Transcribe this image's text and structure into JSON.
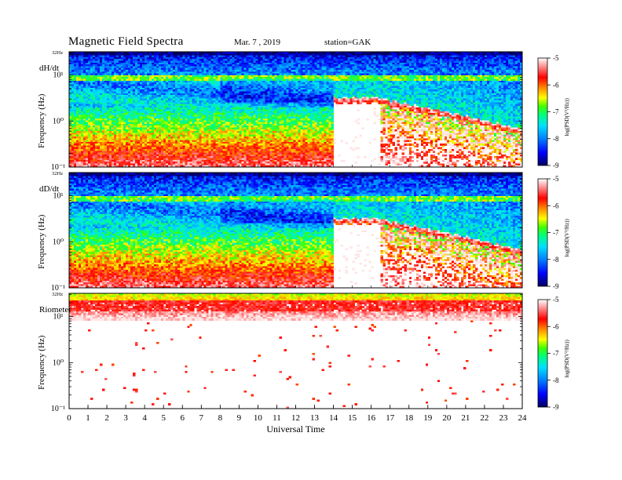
{
  "header": {
    "title": "Magnetic  Field  Spectra",
    "date": "Mar. 7  , 2019",
    "station": "station=GAK"
  },
  "chart_data": [
    {
      "type": "heatmap",
      "panel_label": "dH/dt",
      "ylabel": "Frequency  (Hz)",
      "yscale": "log",
      "ylim": [
        0.1,
        32
      ],
      "top_freq_label": "32Hz",
      "yticks": [
        "10¹",
        "10⁰",
        "10⁻¹"
      ],
      "xlim": [
        0,
        24
      ],
      "colorbar": {
        "label": "log(PSD(V²/Hz))",
        "ticks": [
          "-5",
          "-6",
          "-7",
          "-8",
          "-9"
        ],
        "range": [
          -9,
          -5
        ]
      },
      "features": {
        "quiet_noise_floor_hours": [
          0,
          14
        ],
        "broadband_onset_hour": 14,
        "peak_freq_hz_after_onset": 2.5,
        "peak_decay_end_hour": 16.5
      }
    },
    {
      "type": "heatmap",
      "panel_label": "dD/dt",
      "ylabel": "Frequency  (Hz)",
      "yscale": "log",
      "ylim": [
        0.1,
        32
      ],
      "top_freq_label": "32Hz",
      "yticks": [
        "10¹",
        "10⁰",
        "10⁻¹"
      ],
      "xlim": [
        0,
        24
      ],
      "colorbar": {
        "label": "log(PSD(V²/Hz))",
        "ticks": [
          "-5",
          "-6",
          "-7",
          "-8",
          "-9"
        ],
        "range": [
          -9,
          -5
        ]
      },
      "features": {
        "quiet_noise_floor_hours": [
          0,
          14
        ],
        "broadband_onset_hour": 14,
        "peak_freq_hz_after_onset": 2.5,
        "peak_decay_end_hour": 16.5
      }
    },
    {
      "type": "heatmap",
      "panel_label": "Riometer",
      "ylabel": "Frequency  (Hz)",
      "yscale": "log",
      "ylim": [
        0.1,
        32
      ],
      "top_freq_label": "32Hz",
      "yticks": [
        "10¹",
        "10⁰",
        "10⁻¹"
      ],
      "xlim": [
        0,
        24
      ],
      "colorbar": {
        "label": "log(PSD(V²/Hz))",
        "ticks": [
          "-5",
          "-6",
          "-7",
          "-8",
          "-9"
        ],
        "range": [
          -9,
          -5
        ]
      },
      "features": {
        "high_power_band_hz": [
          10,
          32
        ]
      }
    }
  ],
  "xaxis": {
    "label": "Universal  Time",
    "ticks": [
      "0",
      "1",
      "2",
      "3",
      "4",
      "5",
      "6",
      "7",
      "8",
      "9",
      "10",
      "11",
      "12",
      "13",
      "14",
      "15",
      "16",
      "17",
      "18",
      "19",
      "20",
      "21",
      "22",
      "23",
      "24"
    ]
  },
  "colors": {
    "scale": [
      "#000060",
      "#0000ff",
      "#0080ff",
      "#00e0ff",
      "#00ff80",
      "#40ff00",
      "#ffff00",
      "#ff8000",
      "#ff0000",
      "#ffffff"
    ]
  }
}
